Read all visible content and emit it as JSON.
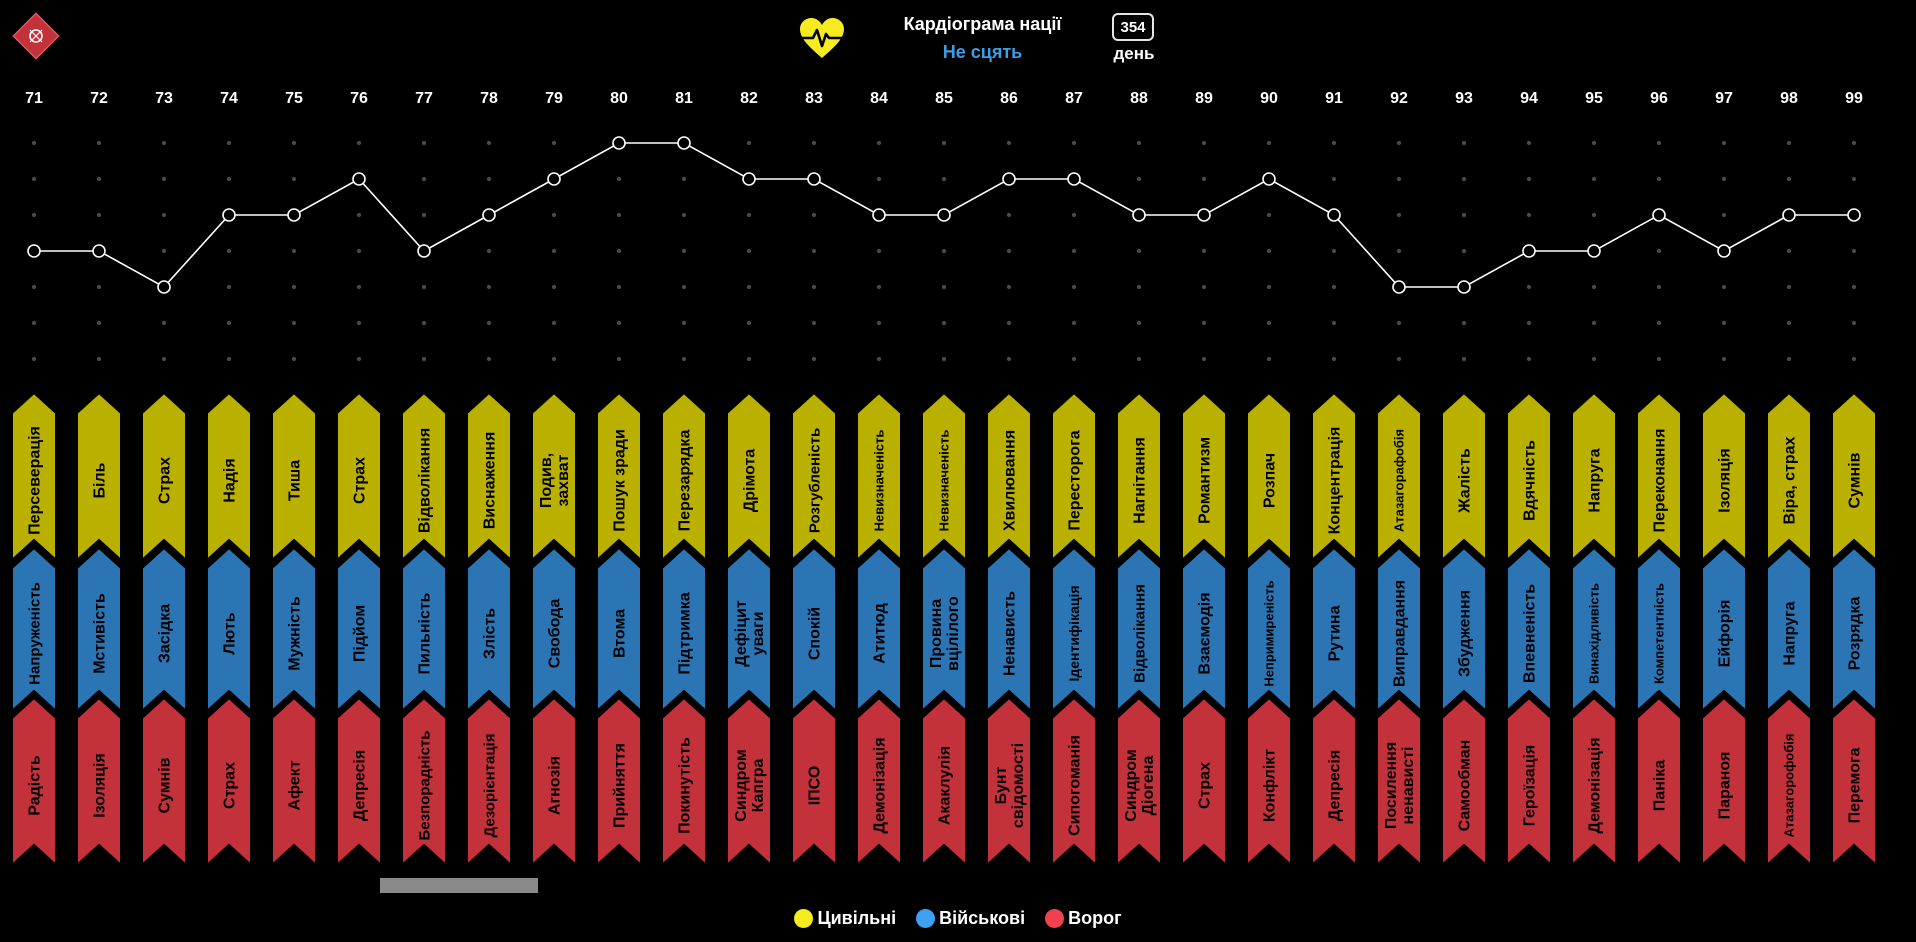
{
  "header": {
    "title": "Кардіограма нації",
    "subtitle": "Не сцять",
    "day_number": "354",
    "day_label": "день",
    "logo_icon": "hazard-diamond-icon",
    "heart_icon": "heartbeat-icon"
  },
  "colors": {
    "civilians": "#b9b000",
    "military": "#2c75b5",
    "enemy": "#c3313a",
    "subtitle": "#3c9ee5",
    "line": "#ffffff",
    "grid_dot": "#4a4a4a"
  },
  "legend": [
    {
      "label": "Цивільні",
      "color": "#f5eb1e"
    },
    {
      "label": "Військові",
      "color": "#3da0f0"
    },
    {
      "label": "Ворог",
      "color": "#f0414e"
    }
  ],
  "chart_data": {
    "type": "line",
    "x": [
      71,
      72,
      73,
      74,
      75,
      76,
      77,
      78,
      79,
      80,
      81,
      82,
      83,
      84,
      85,
      86,
      87,
      88,
      89,
      90,
      91,
      92,
      93,
      94,
      95,
      96,
      97,
      98,
      99
    ],
    "values": [
      4,
      4,
      3,
      5,
      5,
      6,
      4,
      5,
      6,
      7,
      7,
      6,
      6,
      5,
      5,
      6,
      6,
      5,
      5,
      6,
      5,
      3,
      3,
      4,
      4,
      5,
      4,
      5,
      5
    ],
    "ylim": [
      0,
      7
    ],
    "grid": "dots",
    "legend_position": "bottom-center",
    "civilians": [
      "Персеверація",
      "Біль",
      "Страх",
      "Надія",
      "Тиша",
      "Страх",
      "Відволікання",
      "Виснаження",
      "Подив,\nзахват",
      "Пошук зради",
      "Перезарядка",
      "Дрімота",
      "Розгубленість",
      "Невизначеність",
      "Невизначеність",
      "Хвилювання",
      "Пересторога",
      "Нагнітання",
      "Романтизм",
      "Розпач",
      "Концентрація",
      "Атазагорафобія",
      "Жалість",
      "Вдячність",
      "Напруга",
      "Переконання",
      "Ізоляція",
      "Віра, страх",
      "Сумнів"
    ],
    "military": [
      "Напруженість",
      "Мстивість",
      "Засідка",
      "Лють",
      "Мужність",
      "Підйом",
      "Пильність",
      "Злість",
      "Свобода",
      "Втома",
      "Підтримка",
      "Дефіцит\nуваги",
      "Спокій",
      "Атитюд",
      "Провина\nвцілілого",
      "Ненависть",
      "Ідентифікація",
      "Відволікання",
      "Взаємодія",
      "Непримиреність",
      "Рутина",
      "Виправдання",
      "Збудження",
      "Впевненість",
      "Винахідливість",
      "Компетентність",
      "Ейфорія",
      "Напруга",
      "Розрядка"
    ],
    "enemy": [
      "Радість",
      "Ізоляція",
      "Сумнів",
      "Страх",
      "Афект",
      "Депресія",
      "Безпорадність",
      "Дезорієнтація",
      "Агнозія",
      "Прийняття",
      "Покинутість",
      "Синдром\nКапгра",
      "ІПСО",
      "Демонізація",
      "Акаклулія",
      "Бунт\nсвідомості",
      "Сипогоманія",
      "Синдром\nДіогена",
      "Страх",
      "Конфлікт",
      "Депресія",
      "Посилення\nненависті",
      "Самообман",
      "Героїзація",
      "Демонізація",
      "Паніка",
      "Параноя",
      "Атазагорофобія",
      "Перемога"
    ]
  }
}
